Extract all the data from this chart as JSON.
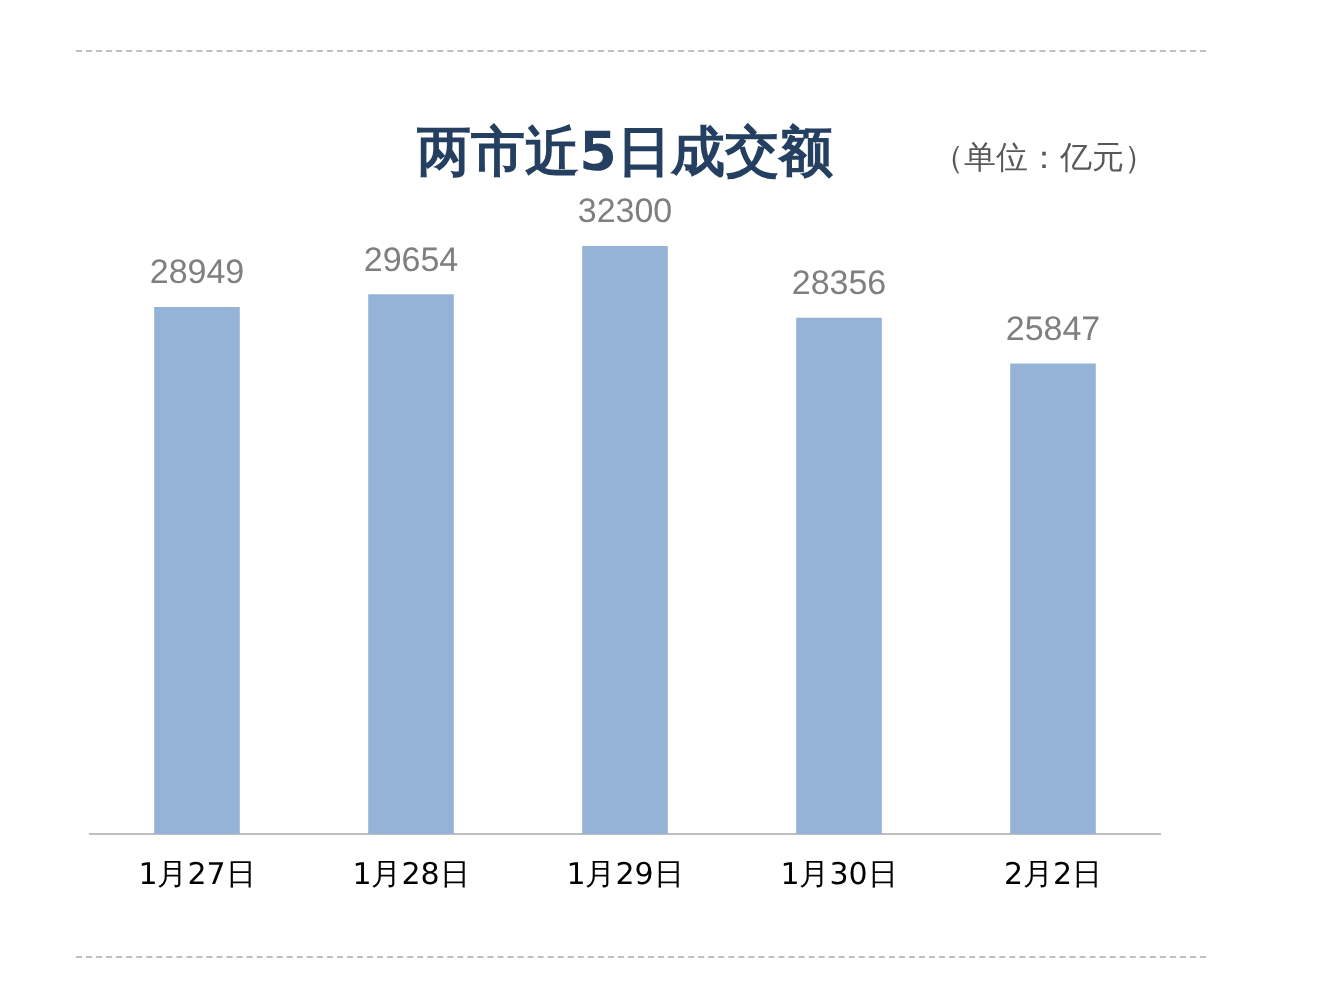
{
  "chart_data": {
    "type": "bar",
    "title": "两市近5日成交额",
    "annotations": [
      "（单位：亿元）"
    ],
    "categories": [
      "1月27日",
      "1月28日",
      "1月29日",
      "1月30日",
      "2月2日"
    ],
    "values": [
      28949,
      29654,
      32300,
      28356,
      25847
    ],
    "color": "#95b3d7",
    "data_labels": true,
    "grid": false,
    "legend": false
  }
}
